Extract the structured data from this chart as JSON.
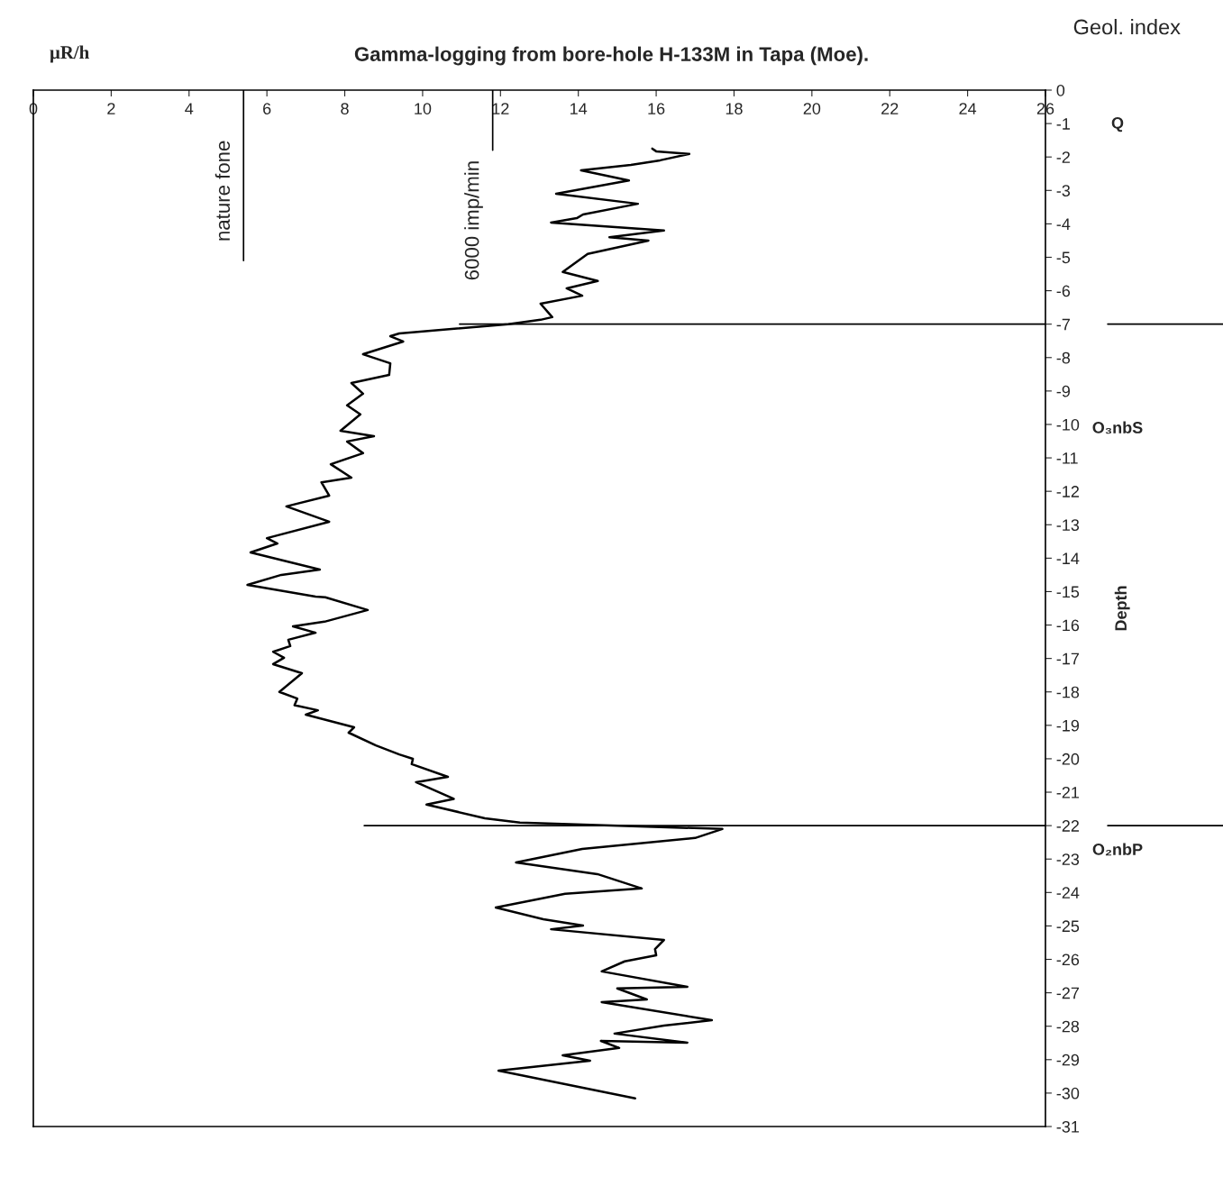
{
  "chart_data": {
    "type": "line",
    "title": "Gamma-logging from bore-hole H-133M in Tapa (Moe).",
    "xlabel": "μR/h",
    "ylabel": "Depth",
    "xlim": [
      0,
      26
    ],
    "xticks": [
      0,
      2,
      4,
      6,
      8,
      10,
      12,
      14,
      16,
      18,
      20,
      22,
      24,
      26
    ],
    "ylim": [
      -31,
      0
    ],
    "yticks": [
      -31,
      -30,
      -29,
      -28,
      -27,
      -26,
      -25,
      -24,
      -23,
      -22,
      -21,
      -20,
      -19,
      -18,
      -17,
      -16,
      -15,
      -14,
      -13,
      -12,
      -11,
      -10,
      -9,
      -8,
      -7,
      -6,
      -5,
      -4,
      -3,
      -2,
      -1,
      0
    ],
    "grid": false,
    "marker": "none",
    "line_style": "solid",
    "series": [
      {
        "color": "#000000",
        "x": [
          15.9,
          16.0,
          16.85,
          16.1,
          15.35,
          14.07,
          15.3,
          13.43,
          15.53,
          14.12,
          13.96,
          13.3,
          16.2,
          14.8,
          15.8,
          14.24,
          13.6,
          14.5,
          13.7,
          14.1,
          13.03,
          13.33,
          13.03,
          12.2,
          9.4,
          9.17,
          9.5,
          8.47,
          9.17,
          9.14,
          8.17,
          8.47,
          8.06,
          8.4,
          7.89,
          8.75,
          8.06,
          8.47,
          7.64,
          8.17,
          7.4,
          7.6,
          6.5,
          7.6,
          6.0,
          6.27,
          5.58,
          7.36,
          6.37,
          5.5,
          7.25,
          7.5,
          8.59,
          7.48,
          6.67,
          7.25,
          6.55,
          6.6,
          6.16,
          6.44,
          6.16,
          6.9,
          6.32,
          6.78,
          6.71,
          7.31,
          7.0,
          8.24,
          8.1,
          8.8,
          9.4,
          9.75,
          9.72,
          10.65,
          9.83,
          10.8,
          10.1,
          11.6,
          12.5,
          17.7,
          17.0,
          14.1,
          12.4,
          14.49,
          15.63,
          13.66,
          11.88,
          13.1,
          14.12,
          13.3,
          16.2,
          15.97,
          16.0,
          15.19,
          14.6,
          16.8,
          15.0,
          15.76,
          14.6,
          17.43,
          16.2,
          14.93,
          16.8,
          14.58,
          15.05,
          13.6,
          14.3,
          11.95,
          15.46
        ],
        "values": [
          -1.75,
          -1.83,
          -1.91,
          -2.1,
          -2.24,
          -2.4,
          -2.7,
          -3.1,
          -3.4,
          -3.72,
          -3.83,
          -3.96,
          -4.2,
          -4.4,
          -4.5,
          -4.9,
          -5.44,
          -5.71,
          -5.93,
          -6.15,
          -6.39,
          -6.79,
          -6.87,
          -7.0,
          -7.28,
          -7.36,
          -7.52,
          -7.9,
          -8.17,
          -8.52,
          -8.76,
          -9.08,
          -9.43,
          -9.7,
          -10.19,
          -10.35,
          -10.51,
          -10.86,
          -11.19,
          -11.59,
          -11.73,
          -12.13,
          -12.45,
          -12.91,
          -13.4,
          -13.56,
          -13.83,
          -14.34,
          -14.5,
          -14.8,
          -15.15,
          -15.17,
          -15.55,
          -15.9,
          -16.04,
          -16.23,
          -16.44,
          -16.63,
          -16.8,
          -16.98,
          -17.17,
          -17.44,
          -18.0,
          -18.2,
          -18.4,
          -18.55,
          -18.68,
          -19.06,
          -19.22,
          -19.6,
          -19.87,
          -20.0,
          -20.16,
          -20.54,
          -20.7,
          -21.2,
          -21.37,
          -21.78,
          -21.91,
          -22.1,
          -22.37,
          -22.7,
          -23.1,
          -23.45,
          -23.88,
          -24.04,
          -24.45,
          -24.8,
          -24.99,
          -25.1,
          -25.42,
          -25.69,
          -25.88,
          -26.06,
          -26.36,
          -26.82,
          -26.87,
          -27.2,
          -27.28,
          -27.82,
          -27.98,
          -28.22,
          -28.49,
          -28.44,
          -28.65,
          -28.87,
          -29.03,
          -29.33,
          -30.16
        ]
      }
    ],
    "ref_lines": [
      {
        "axis": "x",
        "value": 5.4,
        "label": "nature fone",
        "color": "#000000"
      },
      {
        "axis": "x",
        "value": 11.8,
        "label": "6000 imp/min",
        "color": "#000000"
      },
      {
        "axis": "y",
        "value": -7,
        "color": "#000000"
      },
      {
        "axis": "y",
        "value": -22,
        "color": "#000000"
      }
    ],
    "annotations": [
      "Geol. index",
      "Q",
      "O₃nbS",
      "O₂nbP"
    ]
  }
}
